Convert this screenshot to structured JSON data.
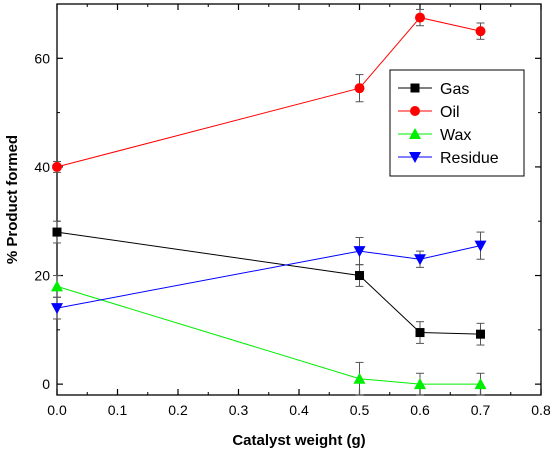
{
  "chart_data": {
    "type": "line",
    "title": "",
    "xlabel": "Catalyst weight (g)",
    "ylabel": "% Product formed",
    "xlim": [
      0,
      0.8
    ],
    "ylim": [
      -2,
      70
    ],
    "x_ticks": [
      0.0,
      0.1,
      0.2,
      0.3,
      0.4,
      0.5,
      0.6,
      0.7,
      0.8
    ],
    "x_tick_labels": [
      "0.0",
      "0.1",
      "0.2",
      "0.3",
      "0.4",
      "0.5",
      "0.6",
      "0.7",
      "0.8"
    ],
    "y_ticks": [
      0,
      20,
      40,
      60
    ],
    "y_tick_labels": [
      "0",
      "20",
      "40",
      "60"
    ],
    "grid": false,
    "legend_position": "top-right",
    "x": [
      0.0,
      0.5,
      0.6,
      0.7
    ],
    "series": [
      {
        "name": "Gas",
        "color": "#000000",
        "marker": "square",
        "values": [
          28.0,
          20.0,
          9.5,
          9.2
        ],
        "error": [
          2.0,
          2.0,
          2.0,
          2.0
        ]
      },
      {
        "name": "Oil",
        "color": "#ff0000",
        "marker": "circle",
        "values": [
          40.0,
          54.5,
          67.5,
          65.0
        ],
        "error": [
          1.0,
          2.5,
          1.5,
          1.5
        ]
      },
      {
        "name": "Wax",
        "color": "#00ee00",
        "marker": "triangle-up",
        "values": [
          18.0,
          1.0,
          0.0,
          0.0
        ],
        "error": [
          2.0,
          3.0,
          2.0,
          2.0
        ]
      },
      {
        "name": "Residue",
        "color": "#0000ff",
        "marker": "triangle-down",
        "values": [
          14.0,
          24.5,
          23.0,
          25.5
        ],
        "error": [
          2.0,
          2.5,
          1.5,
          2.5
        ]
      }
    ]
  }
}
